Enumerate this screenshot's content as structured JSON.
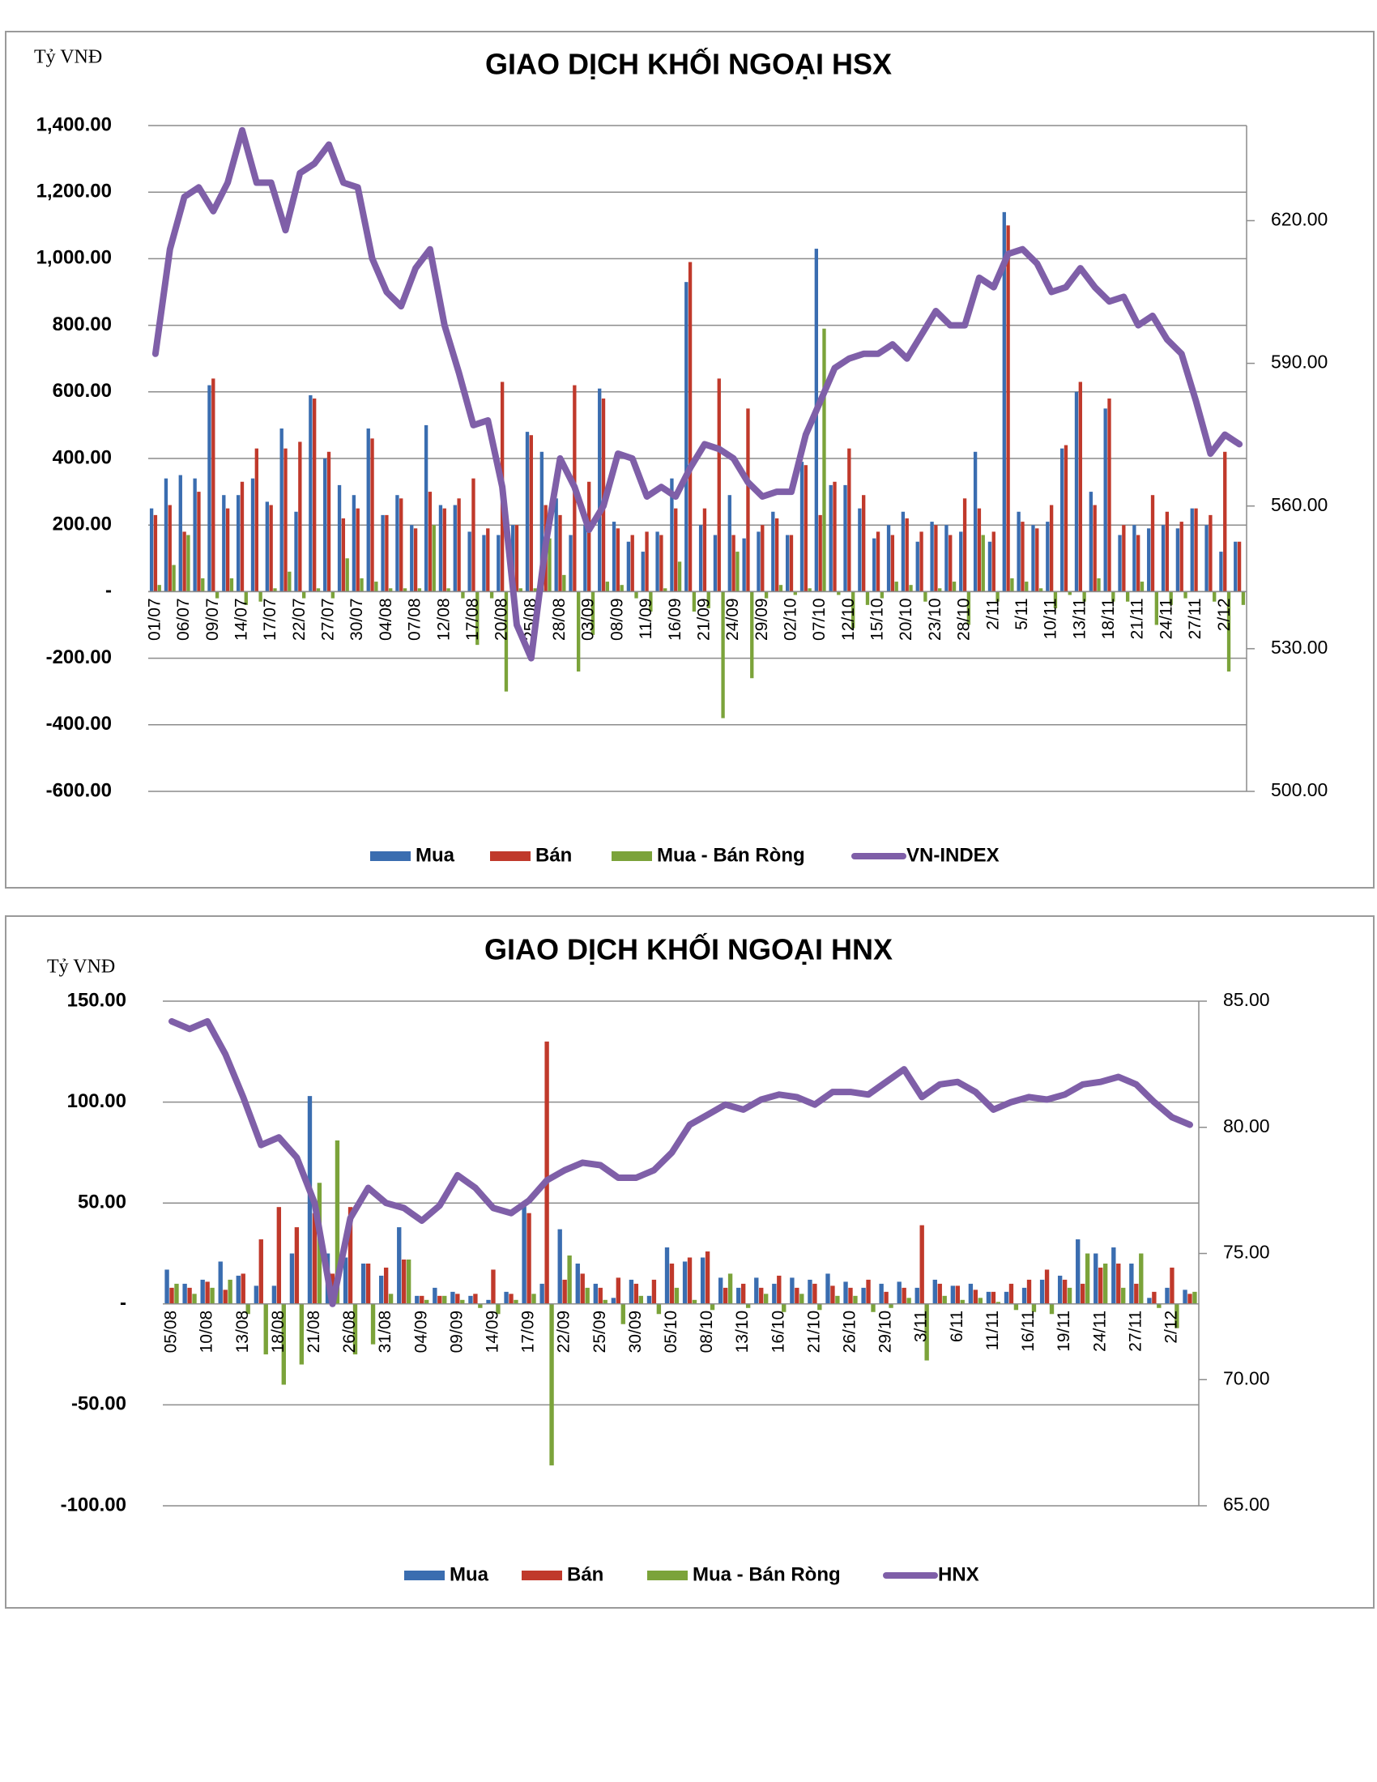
{
  "chart_data": [
    {
      "type": "bar",
      "title": "GIAO DỊCH KHỐI NGOẠI HSX",
      "ylabel": "Tỷ VNĐ",
      "grid": true,
      "ylim": [
        -600,
        1400
      ],
      "yticks": [
        {
          "value": -600,
          "label": "-600.00"
        },
        {
          "value": -400,
          "label": "-400.00"
        },
        {
          "value": -200,
          "label": "-200.00"
        },
        {
          "value": 0,
          "label": "-"
        },
        {
          "value": 200,
          "label": "200.00"
        },
        {
          "value": 400,
          "label": "400.00"
        },
        {
          "value": 600,
          "label": "600.00"
        },
        {
          "value": 800,
          "label": "800.00"
        },
        {
          "value": 1000,
          "label": "1,000.00"
        },
        {
          "value": 1200,
          "label": "1,200.00"
        },
        {
          "value": 1400,
          "label": "1,400.00"
        }
      ],
      "y2lim": [
        500,
        640
      ],
      "y2ticks": [
        {
          "value": 500,
          "label": "500.00"
        },
        {
          "value": 530,
          "label": "530.00"
        },
        {
          "value": 560,
          "label": "560.00"
        },
        {
          "value": 590,
          "label": "590.00"
        },
        {
          "value": 620,
          "label": "620.00"
        }
      ],
      "categories": [
        "01/07",
        null,
        "06/07",
        null,
        "09/07",
        null,
        "14/07",
        null,
        "17/07",
        null,
        "22/07",
        null,
        "27/07",
        null,
        "30/07",
        null,
        "04/08",
        null,
        "07/08",
        null,
        "12/08",
        null,
        "17/08",
        null,
        "20/08",
        null,
        "25/08",
        null,
        "28/08",
        null,
        "03/09",
        null,
        "08/09",
        null,
        "11/09",
        null,
        "16/09",
        null,
        "21/09",
        null,
        "24/09",
        null,
        "29/09",
        null,
        "02/10",
        null,
        "07/10",
        null,
        "12/10",
        null,
        "15/10",
        null,
        "20/10",
        null,
        "23/10",
        null,
        "28/10",
        null,
        "2/11",
        null,
        "5/11",
        null,
        "10/11",
        null,
        "13/11",
        null,
        "18/11",
        null,
        "21/11",
        null,
        "24/11",
        null,
        "27/11",
        null,
        "2/12",
        null
      ],
      "series": [
        {
          "name": "Mua",
          "type": "bar",
          "color": "#3a6db0",
          "values": [
            250,
            340,
            350,
            340,
            620,
            290,
            290,
            340,
            270,
            490,
            240,
            590,
            400,
            320,
            290,
            490,
            230,
            290,
            200,
            500,
            260,
            260,
            180,
            170,
            170,
            200,
            480,
            420,
            280,
            170,
            200,
            610,
            210,
            150,
            120,
            180,
            340,
            930,
            200,
            170,
            290,
            160,
            180,
            240,
            170,
            390,
            1030,
            320,
            320,
            250,
            160,
            200,
            240,
            150,
            210,
            200,
            180,
            420,
            150,
            1140,
            240,
            200,
            210,
            430,
            600,
            300,
            550,
            170,
            200,
            190,
            200,
            190,
            250,
            200,
            120,
            150
          ]
        },
        {
          "name": "Bán",
          "type": "bar",
          "color": "#c0392b",
          "values": [
            230,
            260,
            180,
            300,
            640,
            250,
            330,
            430,
            260,
            430,
            450,
            580,
            420,
            220,
            250,
            460,
            230,
            280,
            190,
            300,
            250,
            280,
            340,
            190,
            630,
            200,
            470,
            260,
            230,
            620,
            330,
            580,
            190,
            170,
            180,
            170,
            250,
            990,
            250,
            640,
            170,
            550,
            200,
            220,
            170,
            380,
            230,
            330,
            430,
            290,
            180,
            170,
            220,
            180,
            200,
            170,
            280,
            250,
            180,
            1100,
            210,
            190,
            260,
            440,
            630,
            260,
            580,
            200,
            170,
            290,
            240,
            210,
            250,
            230,
            420,
            150
          ]
        },
        {
          "name": "Mua - Bán Ròng",
          "type": "bar",
          "color": "#7ba33a",
          "values": [
            20,
            80,
            170,
            40,
            -20,
            40,
            -40,
            -30,
            10,
            60,
            -20,
            10,
            -20,
            100,
            40,
            30,
            10,
            10,
            10,
            200,
            10,
            -20,
            -160,
            -20,
            -300,
            10,
            10,
            160,
            50,
            -240,
            -130,
            30,
            20,
            -20,
            -60,
            10,
            90,
            -60,
            -50,
            -380,
            120,
            -260,
            -20,
            20,
            -10,
            10,
            790,
            -10,
            -110,
            -40,
            -20,
            30,
            20,
            -30,
            10,
            30,
            -100,
            170,
            -30,
            40,
            30,
            10,
            -50,
            -10,
            -30,
            40,
            -30,
            -30,
            30,
            -100,
            -40,
            -20,
            0,
            -30,
            -240,
            -40
          ]
        },
        {
          "name": "VN-INDEX",
          "type": "line",
          "axis": "y2",
          "color": "#7f5fa8",
          "values": [
            592,
            614,
            625,
            627,
            622,
            628,
            639,
            628,
            628,
            618,
            630,
            632,
            636,
            628,
            627,
            612,
            605,
            602,
            610,
            614,
            598,
            588,
            577,
            578,
            564,
            535,
            528,
            552,
            570,
            564,
            555,
            560,
            571,
            570,
            562,
            564,
            562,
            568,
            573,
            572,
            570,
            565,
            562,
            563,
            563,
            575,
            582,
            589,
            591,
            592,
            592,
            594,
            591,
            596,
            601,
            598,
            598,
            608,
            606,
            613,
            614,
            611,
            605,
            606,
            610,
            606,
            603,
            604,
            598,
            600,
            595,
            592,
            582,
            571,
            575,
            573
          ]
        }
      ]
    },
    {
      "type": "bar",
      "title": "GIAO DỊCH KHỐI NGOẠI HNX",
      "ylabel": "Tỷ VNĐ",
      "grid": true,
      "ylim": [
        -100,
        150
      ],
      "yticks": [
        {
          "value": -100,
          "label": "-100.00"
        },
        {
          "value": -50,
          "label": "-50.00"
        },
        {
          "value": 0,
          "label": "-"
        },
        {
          "value": 50,
          "label": "50.00"
        },
        {
          "value": 100,
          "label": "100.00"
        },
        {
          "value": 150,
          "label": "150.00"
        }
      ],
      "y2lim": [
        65,
        85
      ],
      "y2ticks": [
        {
          "value": 65,
          "label": "65.00"
        },
        {
          "value": 70,
          "label": "70.00"
        },
        {
          "value": 75,
          "label": "75.00"
        },
        {
          "value": 80,
          "label": "80.00"
        },
        {
          "value": 85,
          "label": "85.00"
        }
      ],
      "categories": [
        "05/08",
        null,
        "10/08",
        null,
        "13/08",
        null,
        "18/08",
        null,
        "21/08",
        null,
        "26/08",
        null,
        "31/08",
        null,
        "04/09",
        null,
        "09/09",
        null,
        "14/09",
        null,
        "17/09",
        null,
        "22/09",
        null,
        "25/09",
        null,
        "30/09",
        null,
        "05/10",
        null,
        "08/10",
        null,
        "13/10",
        null,
        "16/10",
        null,
        "21/10",
        null,
        "26/10",
        null,
        "29/10",
        null,
        "3/11",
        null,
        "6/11",
        null,
        "11/11",
        null,
        "16/11",
        null,
        "19/11",
        null,
        "24/11",
        null,
        "27/11",
        null,
        "2/12",
        null
      ],
      "series": [
        {
          "name": "Mua",
          "type": "bar",
          "color": "#3a6db0",
          "values": [
            17,
            10,
            12,
            21,
            14,
            9,
            9,
            25,
            103,
            25,
            23,
            20,
            14,
            38,
            4,
            8,
            6,
            4,
            2,
            6,
            50,
            10,
            37,
            20,
            10,
            3,
            12,
            4,
            28,
            21,
            23,
            13,
            8,
            13,
            10,
            13,
            12,
            15,
            11,
            8,
            10,
            11,
            8,
            12,
            9,
            10,
            6,
            6,
            8,
            12,
            14,
            32,
            25,
            28,
            20,
            3,
            8,
            7
          ]
        },
        {
          "name": "Bán",
          "type": "bar",
          "color": "#c0392b",
          "values": [
            8,
            8,
            11,
            7,
            15,
            32,
            48,
            38,
            45,
            15,
            48,
            20,
            18,
            22,
            4,
            4,
            5,
            5,
            17,
            5,
            45,
            130,
            12,
            15,
            8,
            13,
            10,
            12,
            20,
            23,
            26,
            8,
            10,
            8,
            14,
            8,
            10,
            9,
            8,
            12,
            6,
            8,
            39,
            10,
            9,
            7,
            6,
            10,
            12,
            17,
            12,
            10,
            18,
            20,
            10,
            6,
            18,
            5
          ]
        },
        {
          "name": "Mua - Bán Ròng",
          "type": "bar",
          "color": "#7ba33a",
          "values": [
            10,
            5,
            8,
            12,
            -5,
            -25,
            -40,
            -30,
            60,
            81,
            -25,
            -20,
            5,
            22,
            2,
            4,
            2,
            -2,
            -5,
            2,
            5,
            -80,
            24,
            8,
            2,
            -10,
            4,
            -5,
            8,
            2,
            -3,
            15,
            -2,
            5,
            -4,
            5,
            -3,
            4,
            4,
            -4,
            -2,
            3,
            -28,
            4,
            2,
            3,
            1,
            -3,
            -4,
            -5,
            8,
            25,
            20,
            8,
            25,
            -2,
            -12,
            6
          ]
        },
        {
          "name": "HNX",
          "type": "line",
          "axis": "y2",
          "color": "#7f5fa8",
          "values": [
            84.2,
            83.9,
            84.2,
            82.9,
            81.2,
            79.3,
            79.6,
            78.8,
            77.0,
            73.0,
            76.4,
            77.6,
            77.0,
            76.8,
            76.3,
            76.9,
            78.1,
            77.6,
            76.8,
            76.6,
            77.1,
            77.9,
            78.3,
            78.6,
            78.5,
            78.0,
            78.0,
            78.3,
            79.0,
            80.1,
            80.5,
            80.9,
            80.7,
            81.1,
            81.3,
            81.2,
            80.9,
            81.4,
            81.4,
            81.3,
            81.8,
            82.3,
            81.2,
            81.7,
            81.8,
            81.4,
            80.7,
            81.0,
            81.2,
            81.1,
            81.3,
            81.7,
            81.8,
            82.0,
            81.7,
            81.0,
            80.4,
            80.1
          ]
        }
      ]
    }
  ]
}
